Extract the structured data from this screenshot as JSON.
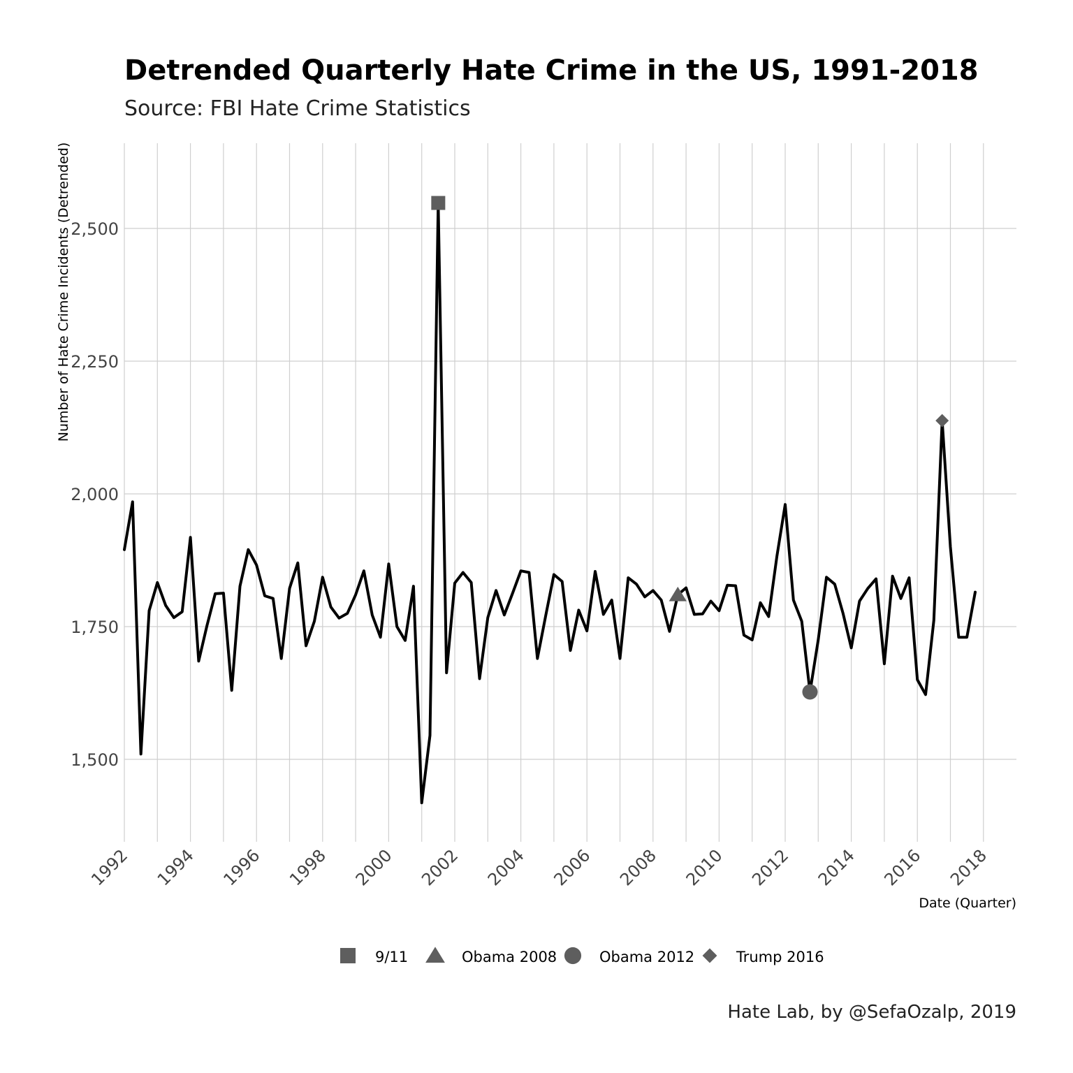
{
  "title": "Detrended Quarterly Hate Crime in the US, 1991-2018",
  "subtitle": "Source: FBI Hate Crime Statistics",
  "caption": "Hate Lab, by @SefaOzalp, 2019",
  "chart_data": {
    "type": "line",
    "title": "Detrended Quarterly Hate Crime in the US, 1991-2018",
    "subtitle": "Source: FBI Hate Crime Statistics",
    "xlabel": "Date (Quarter)",
    "ylabel": "Number of Hate Crime Incidents (Detrended)",
    "xlim": [
      1992,
      2018.6
    ],
    "ylim": [
      1360,
      2680
    ],
    "x_ticks": [
      "1992",
      "1994",
      "1996",
      "1998",
      "2000",
      "2002",
      "2004",
      "2006",
      "2008",
      "2010",
      "2012",
      "2014",
      "2016",
      "2018"
    ],
    "y_ticks": [
      "1,500",
      "1,750",
      "2,000",
      "2,250",
      "2,500"
    ],
    "grid": true,
    "legend_position": "bottom",
    "line_color": "#000000",
    "marker_color": "#5e5e5e",
    "series": [
      {
        "x": [
          1992.0,
          1992.25,
          1992.5,
          1992.75,
          1993.0,
          1993.25,
          1993.5,
          1993.75,
          1994.0,
          1994.25,
          1994.5,
          1994.75,
          1995.0,
          1995.25,
          1995.5,
          1995.75,
          1996.0,
          1996.25,
          1996.5,
          1996.75,
          1997.0,
          1997.25,
          1997.5,
          1997.75,
          1998.0,
          1998.25,
          1998.5,
          1998.75,
          1999.0,
          1999.25,
          1999.5,
          1999.75,
          2000.0,
          2000.25,
          2000.5,
          2000.75,
          2001.0,
          2001.25,
          2001.5,
          2001.75,
          2002.0,
          2002.25,
          2002.5,
          2002.75,
          2003.0,
          2003.25,
          2003.5,
          2003.75,
          2004.0,
          2004.25,
          2004.5,
          2004.75,
          2005.0,
          2005.25,
          2005.5,
          2005.75,
          2006.0,
          2006.25,
          2006.5,
          2006.75,
          2007.0,
          2007.25,
          2007.5,
          2007.75,
          2008.0,
          2008.25,
          2008.5,
          2008.75,
          2009.0,
          2009.25,
          2009.5,
          2009.75,
          2010.0,
          2010.25,
          2010.5,
          2010.75,
          2011.0,
          2011.25,
          2011.5,
          2011.75,
          2012.0,
          2012.25,
          2012.5,
          2012.75,
          2013.0,
          2013.25,
          2013.5,
          2013.75,
          2014.0,
          2014.25,
          2014.5,
          2014.75,
          2015.0,
          2015.25,
          2015.5,
          2015.75,
          2016.0,
          2016.25,
          2016.5,
          2016.75,
          2017.0,
          2017.25,
          2017.5,
          2017.75
        ],
        "values": [
          1895,
          1985,
          1510,
          1780,
          1833,
          1790,
          1767,
          1778,
          1918,
          1685,
          1752,
          1812,
          1813,
          1630,
          1826,
          1895,
          1866,
          1808,
          1803,
          1690,
          1822,
          1870,
          1714,
          1760,
          1843,
          1787,
          1766,
          1775,
          1810,
          1855,
          1772,
          1730,
          1868,
          1750,
          1724,
          1826,
          1418,
          1545,
          2548,
          1663,
          1832,
          1852,
          1833,
          1652,
          1767,
          1818,
          1772,
          1813,
          1855,
          1852,
          1690,
          1770,
          1848,
          1835,
          1705,
          1781,
          1742,
          1854,
          1773,
          1800,
          1690,
          1842,
          1830,
          1806,
          1818,
          1800,
          1741,
          1810,
          1823,
          1773,
          1774,
          1798,
          1780,
          1828,
          1827,
          1734,
          1725,
          1795,
          1769,
          1883,
          1980,
          1800,
          1760,
          1627,
          1725,
          1843,
          1830,
          1775,
          1710,
          1798,
          1822,
          1840,
          1680,
          1845,
          1803,
          1842,
          1650,
          1622,
          1762,
          2138,
          1900,
          1730,
          1730,
          1815
        ]
      }
    ],
    "events": [
      {
        "name": "9/11",
        "x": 2001.5,
        "y": 2548,
        "shape": "square"
      },
      {
        "name": "Obama 2008",
        "x": 2008.75,
        "y": 1810,
        "shape": "triangle"
      },
      {
        "name": "Obama 2012",
        "x": 2012.75,
        "y": 1627,
        "shape": "circle"
      },
      {
        "name": "Trump 2016",
        "x": 2016.75,
        "y": 2138,
        "shape": "diamond"
      }
    ]
  }
}
